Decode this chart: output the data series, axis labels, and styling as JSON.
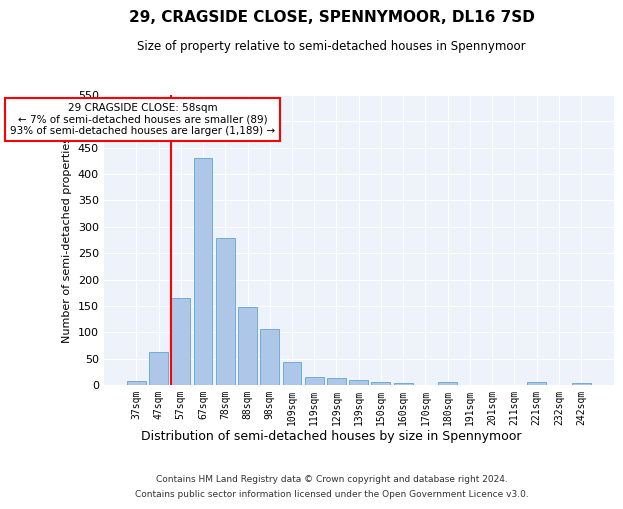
{
  "title": "29, CRAGSIDE CLOSE, SPENNYMOOR, DL16 7SD",
  "subtitle": "Size of property relative to semi-detached houses in Spennymoor",
  "xlabel": "Distribution of semi-detached houses by size in Spennymoor",
  "ylabel": "Number of semi-detached properties",
  "categories": [
    "37sqm",
    "47sqm",
    "57sqm",
    "67sqm",
    "78sqm",
    "88sqm",
    "98sqm",
    "109sqm",
    "119sqm",
    "129sqm",
    "139sqm",
    "150sqm",
    "160sqm",
    "170sqm",
    "180sqm",
    "191sqm",
    "201sqm",
    "211sqm",
    "221sqm",
    "232sqm",
    "242sqm"
  ],
  "values": [
    8,
    63,
    165,
    430,
    278,
    148,
    107,
    44,
    15,
    14,
    10,
    5,
    4,
    0,
    5,
    0,
    0,
    0,
    5,
    0,
    4
  ],
  "bar_color": "#aec7e8",
  "bar_edge_color": "#6baed6",
  "annotation_text_line1": "29 CRAGSIDE CLOSE: 58sqm",
  "annotation_text_line2": "← 7% of semi-detached houses are smaller (89)",
  "annotation_text_line3": "93% of semi-detached houses are larger (1,189) →",
  "ylim": [
    0,
    550
  ],
  "yticks": [
    0,
    50,
    100,
    150,
    200,
    250,
    300,
    350,
    400,
    450,
    500,
    550
  ],
  "background_color": "#eef2fa",
  "footer_line1": "Contains HM Land Registry data © Crown copyright and database right 2024.",
  "footer_line2": "Contains public sector information licensed under the Open Government Licence v3.0."
}
